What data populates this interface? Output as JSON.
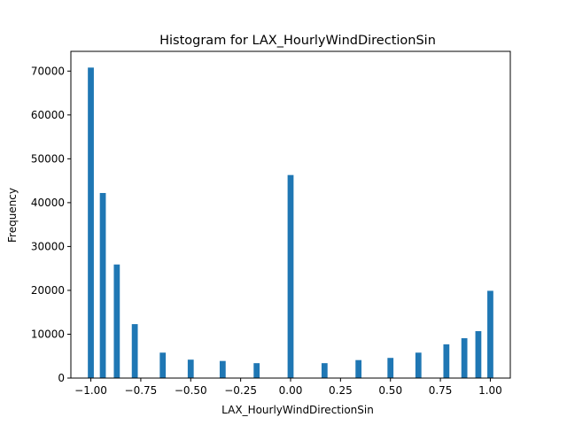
{
  "chart_data": {
    "type": "bar",
    "title": "Histogram for LAX_HourlyWindDirectionSin",
    "xlabel": "LAX_HourlyWindDirectionSin",
    "ylabel": "Frequency",
    "xlim": [
      -1.1,
      1.1
    ],
    "ylim": [
      0,
      74500
    ],
    "bin_width": 0.03,
    "xticks": [
      -1.0,
      -0.75,
      -0.5,
      -0.25,
      0.0,
      0.25,
      0.5,
      0.75,
      1.0
    ],
    "xtick_labels": [
      "−1.00",
      "−0.75",
      "−0.50",
      "−0.25",
      "0.00",
      "0.25",
      "0.50",
      "0.75",
      "1.00"
    ],
    "yticks": [
      0,
      10000,
      20000,
      30000,
      40000,
      50000,
      60000,
      70000
    ],
    "ytick_labels": [
      "0",
      "10000",
      "20000",
      "30000",
      "40000",
      "50000",
      "60000",
      "70000"
    ],
    "bar_color": "#1f77b4",
    "grid": false,
    "bins": [
      {
        "x": -1.0,
        "value": 70800
      },
      {
        "x": -0.94,
        "value": 42200
      },
      {
        "x": -0.87,
        "value": 25900
      },
      {
        "x": -0.78,
        "value": 12300
      },
      {
        "x": -0.64,
        "value": 5800
      },
      {
        "x": -0.5,
        "value": 4200
      },
      {
        "x": -0.34,
        "value": 3900
      },
      {
        "x": -0.17,
        "value": 3400
      },
      {
        "x": 0.0,
        "value": 46300
      },
      {
        "x": 0.17,
        "value": 3400
      },
      {
        "x": 0.34,
        "value": 4100
      },
      {
        "x": 0.5,
        "value": 4600
      },
      {
        "x": 0.64,
        "value": 5800
      },
      {
        "x": 0.78,
        "value": 7700
      },
      {
        "x": 0.87,
        "value": 9100
      },
      {
        "x": 0.94,
        "value": 10700
      },
      {
        "x": 1.0,
        "value": 19900
      }
    ]
  }
}
